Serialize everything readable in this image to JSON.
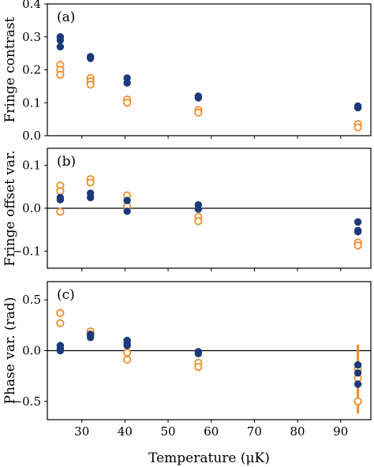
{
  "colors": {
    "filled": "#1a3a7a",
    "open": "#f28c28"
  },
  "xaxis": {
    "label": "Temperature (μK)",
    "ticks": [
      30,
      40,
      50,
      60,
      70,
      80,
      90
    ],
    "range": [
      22,
      97
    ]
  },
  "chart_data": [
    {
      "type": "scatter",
      "panel": "(a)",
      "ylabel": "Fringe contrast",
      "ylim": [
        0,
        0.4
      ],
      "yticks": [
        0.0,
        0.1,
        0.2,
        0.3,
        0.4
      ],
      "zero_line": false,
      "series": [
        {
          "style": "filled",
          "points": [
            [
              25,
              0.3
            ],
            [
              25,
              0.29
            ],
            [
              25,
              0.27
            ],
            [
              32,
              0.24
            ],
            [
              32,
              0.235
            ],
            [
              40.5,
              0.175
            ],
            [
              40.5,
              0.16
            ],
            [
              57,
              0.12
            ],
            [
              57,
              0.115
            ],
            [
              94,
              0.09
            ],
            [
              94,
              0.085
            ]
          ]
        },
        {
          "style": "open",
          "points": [
            [
              25,
              0.215
            ],
            [
              25,
              0.2
            ],
            [
              25,
              0.185
            ],
            [
              32,
              0.175
            ],
            [
              32,
              0.165
            ],
            [
              32,
              0.155
            ],
            [
              40.5,
              0.11
            ],
            [
              40.5,
              0.1
            ],
            [
              57,
              0.078
            ],
            [
              57,
              0.07
            ],
            [
              94,
              0.035
            ],
            [
              94,
              0.025
            ]
          ]
        }
      ]
    },
    {
      "type": "scatter",
      "panel": "(b)",
      "ylabel": "Fringe offset var.",
      "ylim": [
        -0.14,
        0.14
      ],
      "yticks": [
        0.1,
        0.0,
        -0.1
      ],
      "ytick_labels": [
        "0.1",
        "0.0",
        "−0.1"
      ],
      "zero_line": true,
      "series": [
        {
          "style": "filled",
          "points": [
            [
              25,
              0.025
            ],
            [
              25,
              0.02
            ],
            [
              32,
              0.035
            ],
            [
              32,
              0.025
            ],
            [
              40.5,
              0.018
            ],
            [
              40.5,
              -0.007
            ],
            [
              57,
              0.008
            ],
            [
              57,
              -0.002
            ],
            [
              94,
              -0.032
            ],
            [
              94,
              -0.052
            ],
            [
              94,
              -0.055
            ]
          ]
        },
        {
          "style": "open",
          "points": [
            [
              25,
              0.053
            ],
            [
              25,
              0.04
            ],
            [
              25,
              -0.008
            ],
            [
              32,
              0.068
            ],
            [
              32,
              0.06
            ],
            [
              40.5,
              0.03
            ],
            [
              40.5,
              0.005
            ],
            [
              57,
              -0.02
            ],
            [
              57,
              -0.03
            ],
            [
              94,
              -0.08
            ],
            [
              94,
              -0.087
            ]
          ]
        }
      ]
    },
    {
      "type": "scatter",
      "panel": "(c)",
      "ylabel": "Phase var. (rad)",
      "ylim": [
        -0.68,
        0.68
      ],
      "yticks": [
        0.5,
        0.0,
        -0.5
      ],
      "ytick_labels": [
        "0.5",
        "0.0",
        "−0.5"
      ],
      "zero_line": true,
      "series": [
        {
          "style": "filled",
          "points": [
            [
              25,
              0.05
            ],
            [
              25,
              0.02
            ],
            [
              25,
              0.0
            ],
            [
              32,
              0.16
            ],
            [
              32,
              0.13
            ],
            [
              40.5,
              0.1
            ],
            [
              40.5,
              0.07
            ],
            [
              40.5,
              0.05
            ],
            [
              57,
              -0.01
            ],
            [
              57,
              -0.03
            ],
            [
              94,
              -0.14
            ],
            [
              94,
              -0.22
            ],
            [
              94,
              -0.33
            ]
          ]
        },
        {
          "style": "open",
          "points": [
            [
              25,
              0.37
            ],
            [
              25,
              0.27
            ],
            [
              32,
              0.19
            ],
            [
              32,
              0.16
            ],
            [
              40.5,
              -0.02
            ],
            [
              40.5,
              -0.09
            ],
            [
              57,
              -0.12
            ],
            [
              57,
              -0.16
            ],
            [
              94,
              -0.18
            ],
            [
              94,
              -0.27
            ],
            [
              94,
              -0.5
            ]
          ]
        }
      ],
      "error_bars": [
        {
          "x": 94,
          "low": -0.62,
          "high": 0.06,
          "style": "open"
        }
      ]
    }
  ]
}
